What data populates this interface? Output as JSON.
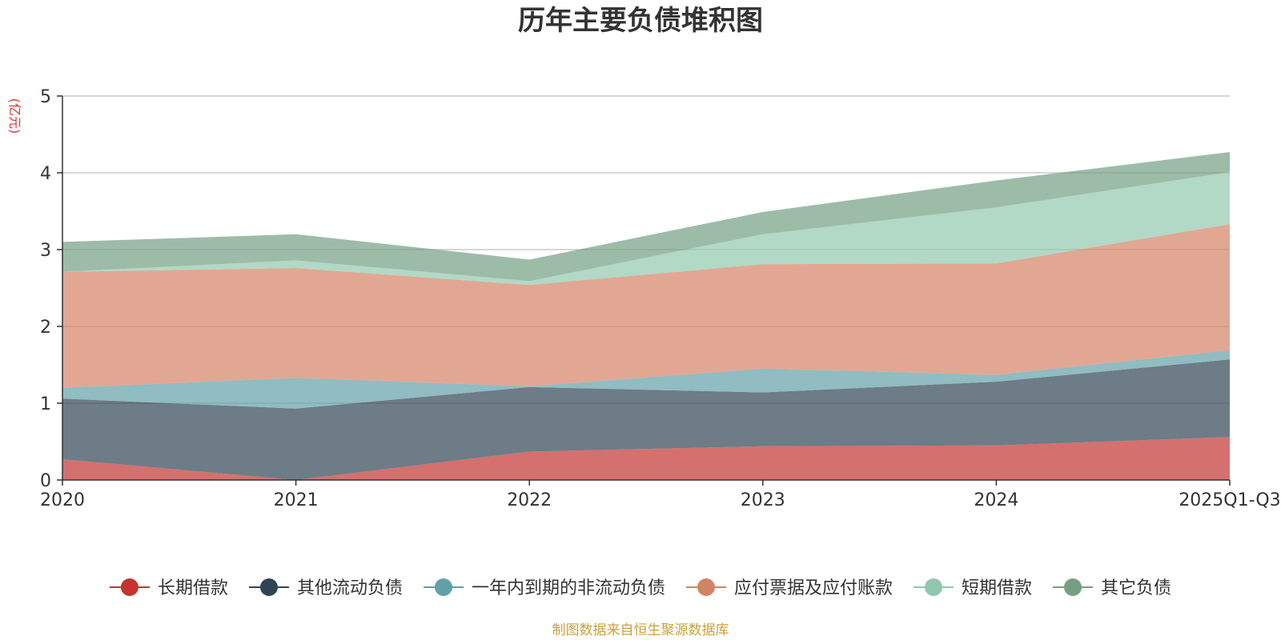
{
  "chart_data": {
    "type": "area",
    "stacked": true,
    "title": "历年主要负债堆积图",
    "unit_label": "(亿元)",
    "categories": [
      "2020",
      "2021",
      "2022",
      "2023",
      "2024",
      "2025Q1-Q3"
    ],
    "y_ticks": [
      "0",
      "1",
      "2",
      "3",
      "4",
      "5"
    ],
    "ylim": [
      0,
      5
    ],
    "grid": true,
    "legend_position": "bottom",
    "series": [
      {
        "name": "长期借款",
        "color": "#c23531",
        "values": [
          0.27,
          0.0,
          0.37,
          0.44,
          0.45,
          0.56
        ]
      },
      {
        "name": "其他流动负债",
        "color": "#2f4554",
        "values": [
          0.79,
          0.93,
          0.84,
          0.7,
          0.83,
          1.01
        ]
      },
      {
        "name": "一年内到期的非流动负债",
        "color": "#61a0a8",
        "values": [
          0.14,
          0.4,
          0.01,
          0.31,
          0.09,
          0.12
        ]
      },
      {
        "name": "应付票据及应付账款",
        "color": "#d48265",
        "values": [
          1.51,
          1.43,
          1.32,
          1.36,
          1.45,
          1.64
        ]
      },
      {
        "name": "短期借款",
        "color": "#91c7ae",
        "values": [
          0.0,
          0.1,
          0.05,
          0.39,
          0.73,
          0.68
        ]
      },
      {
        "name": "其它负债",
        "color": "#749f83",
        "values": [
          0.39,
          0.34,
          0.28,
          0.29,
          0.35,
          0.26
        ]
      }
    ]
  },
  "source": "制图数据来自恒生聚源数据库"
}
